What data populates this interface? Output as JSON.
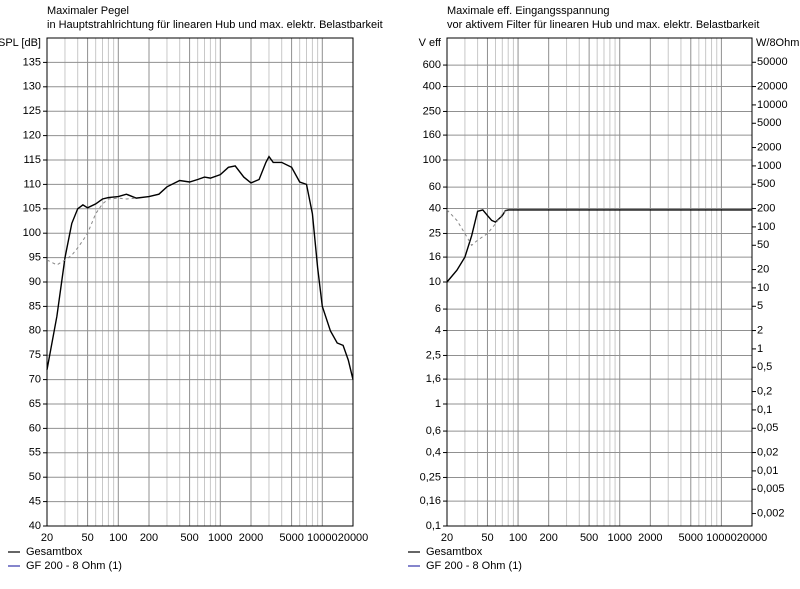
{
  "chart_data": [
    {
      "type": "line",
      "title": "Maximaler Pegel",
      "subtitle": "in Hauptstrahlrichtung für linearen Hub und max. elektr. Belastbarkeit",
      "ylabel": "SPL [dB]",
      "xlog": true,
      "ylog": false,
      "grid": true,
      "xlim": [
        20,
        20000
      ],
      "ylim": [
        40,
        140
      ],
      "xticks": [
        20,
        50,
        100,
        200,
        500,
        1000,
        2000,
        5000,
        10000,
        20000
      ],
      "xminor": [
        30,
        40,
        60,
        70,
        80,
        90,
        300,
        400,
        600,
        700,
        800,
        900,
        3000,
        4000,
        6000,
        7000,
        8000,
        9000
      ],
      "yticks": [
        40,
        45,
        50,
        55,
        60,
        65,
        70,
        75,
        80,
        85,
        90,
        95,
        100,
        105,
        110,
        115,
        120,
        125,
        130,
        135
      ],
      "x": [
        20,
        25,
        30,
        35,
        40,
        45,
        50,
        60,
        70,
        80,
        100,
        120,
        150,
        200,
        250,
        300,
        400,
        500,
        600,
        700,
        800,
        1000,
        1200,
        1400,
        1700,
        2000,
        2400,
        2800,
        3000,
        3300,
        4000,
        5000,
        6000,
        7000,
        8000,
        9000,
        10000,
        12000,
        14000,
        16000,
        18000,
        20000
      ],
      "series": [
        {
          "name": "Gesamtbox",
          "color": "#000000",
          "dash": false,
          "values": [
            72,
            83,
            95,
            102,
            105,
            105.8,
            105.2,
            106,
            107,
            107.3,
            107.5,
            108,
            107.2,
            107.5,
            108,
            109.5,
            110.8,
            110.5,
            111,
            111.5,
            111.3,
            112,
            113.5,
            113.8,
            111.5,
            110.3,
            111,
            114.5,
            115.7,
            114.5,
            114.5,
            113.5,
            110.5,
            110,
            104,
            93,
            85,
            80,
            77.5,
            77,
            74,
            70
          ]
        },
        {
          "name": "GF 200 - 8 Ohm (1)",
          "color": "#3333aa",
          "dash": true,
          "values": [
            94.5,
            93.5,
            94.5,
            95.5,
            97,
            98.5,
            100,
            104,
            106,
            107,
            107.2,
            107,
            107.2,
            null,
            null,
            null,
            null,
            null,
            null,
            null,
            null,
            null,
            null,
            null,
            null,
            null,
            null,
            null,
            null,
            null,
            null,
            null,
            null,
            null,
            null,
            null,
            null,
            null,
            null,
            null,
            null,
            null
          ]
        }
      ]
    },
    {
      "type": "line",
      "title": "Maximale eff. Eingangsspannung",
      "subtitle": "vor aktivem Filter für linearen Hub und max. elektr. Belastbarkeit",
      "ylabel": "V eff",
      "y2label": "W/8Ohm",
      "xlog": true,
      "ylog": true,
      "y2log": true,
      "grid": true,
      "xlim": [
        20,
        20000
      ],
      "ylim": [
        0.1,
        1000
      ],
      "y2lim": [
        0.00125,
        125000
      ],
      "xticks": [
        20,
        50,
        100,
        200,
        500,
        1000,
        2000,
        5000,
        10000,
        20000
      ],
      "xminor": [
        30,
        40,
        60,
        70,
        80,
        90,
        300,
        400,
        600,
        700,
        800,
        900,
        3000,
        4000,
        6000,
        7000,
        8000,
        9000
      ],
      "yticks": [
        {
          "value": 0.1,
          "label": "0,1"
        },
        {
          "value": 0.16,
          "label": "0,16"
        },
        {
          "value": 0.25,
          "label": "0,25"
        },
        {
          "value": 0.4,
          "label": "0,4"
        },
        {
          "value": 0.6,
          "label": "0,6"
        },
        1,
        {
          "value": 1.6,
          "label": "1,6"
        },
        {
          "value": 2.5,
          "label": "2,5"
        },
        4,
        6,
        10,
        16,
        25,
        40,
        60,
        100,
        160,
        250,
        400,
        600
      ],
      "y2ticks": [
        {
          "value": 0.002,
          "label": "0,002"
        },
        {
          "value": 0.005,
          "label": "0,005"
        },
        {
          "value": 0.01,
          "label": "0,01"
        },
        {
          "value": 0.02,
          "label": "0,02"
        },
        {
          "value": 0.05,
          "label": "0,05"
        },
        {
          "value": 0.1,
          "label": "0,1"
        },
        {
          "value": 0.2,
          "label": "0,2"
        },
        {
          "value": 0.5,
          "label": "0,5"
        },
        1,
        2,
        5,
        10,
        20,
        50,
        100,
        200,
        500,
        1000,
        2000,
        5000,
        10000,
        20000,
        50000
      ],
      "x": [
        20,
        25,
        30,
        35,
        40,
        45,
        50,
        55,
        60,
        70,
        75,
        80,
        100,
        200,
        500,
        1000,
        2000,
        5000,
        10000,
        20000
      ],
      "series": [
        {
          "name": "Gesamtbox",
          "color": "#000000",
          "dash": false,
          "values": [
            10,
            12.5,
            16,
            24,
            38,
            39,
            35,
            32,
            31,
            35,
            38.5,
            39,
            39,
            39,
            39,
            39,
            39,
            39,
            39,
            39
          ]
        },
        {
          "name": "GF 200 - 8 Ohm (1)",
          "color": "#3333aa",
          "dash": true,
          "values": [
            39,
            32,
            25,
            20,
            22,
            23.5,
            25,
            27.5,
            30,
            36,
            38,
            39,
            null,
            null,
            null,
            null,
            null,
            null,
            null,
            null
          ]
        }
      ]
    }
  ]
}
